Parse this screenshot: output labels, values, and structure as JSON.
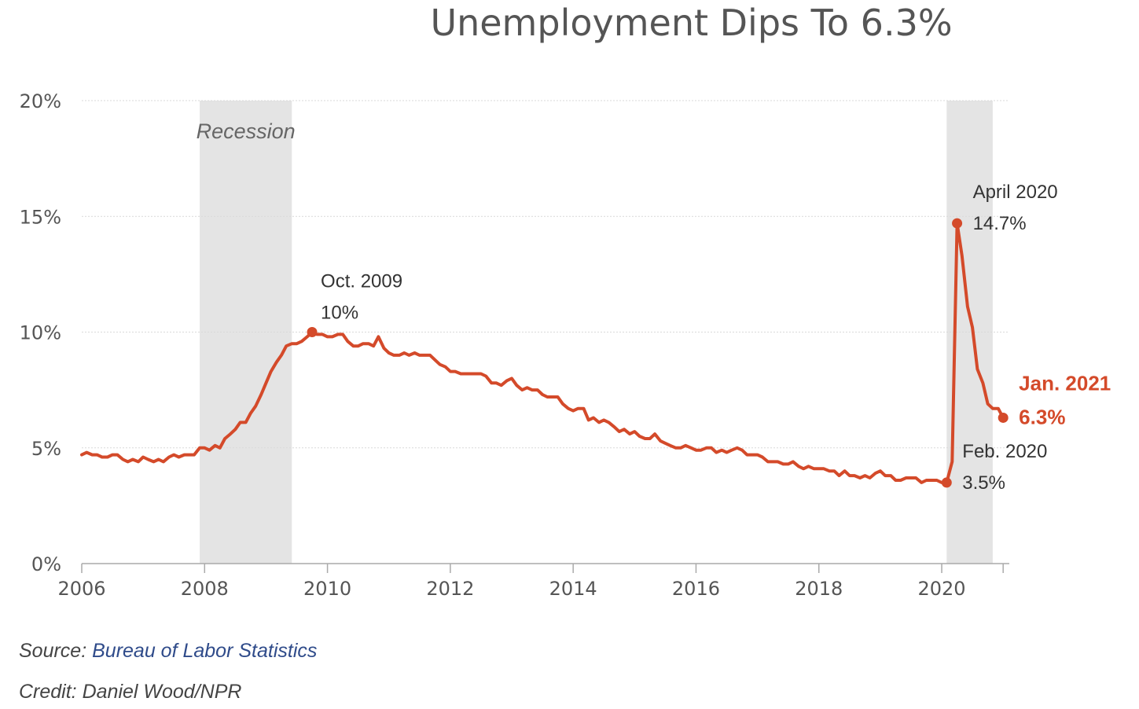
{
  "title": "Unemployment Dips To 6.3%",
  "footer": {
    "source_prefix": "Source: ",
    "source_link": "Bureau of Labor Statistics",
    "credit": "Credit: Daniel Wood/NPR"
  },
  "colors": {
    "line": "#d44a2a",
    "recession_band": "#e4e4e4",
    "grid": "#d9d9d9",
    "axis": "#aaaaaa",
    "text": "#555555"
  },
  "chart_data": {
    "type": "line",
    "title": "Unemployment Dips To 6.3%",
    "xlabel": "",
    "ylabel": "",
    "grid": true,
    "xlim": [
      2006.0,
      2021.1
    ],
    "ylim": [
      0,
      20
    ],
    "x_ticks": [
      2006,
      2008,
      2010,
      2012,
      2014,
      2016,
      2018,
      2020
    ],
    "x_tick_labels": [
      "2006",
      "2008",
      "2010",
      "2012",
      "2014",
      "2016",
      "2018",
      "2020"
    ],
    "y_ticks": [
      0,
      5,
      10,
      15,
      20
    ],
    "y_tick_labels": [
      "0%",
      "5%",
      "10%",
      "15%",
      "20%"
    ],
    "recessions": [
      {
        "start": 2007.92,
        "end": 2009.42,
        "label": "Recession"
      },
      {
        "start": 2020.08,
        "end": 2020.83,
        "label": ""
      }
    ],
    "series": [
      {
        "points": [
          [
            2006.0,
            4.7
          ],
          [
            2006.08,
            4.8
          ],
          [
            2006.17,
            4.7
          ],
          [
            2006.25,
            4.7
          ],
          [
            2006.33,
            4.6
          ],
          [
            2006.42,
            4.6
          ],
          [
            2006.5,
            4.7
          ],
          [
            2006.58,
            4.7
          ],
          [
            2006.67,
            4.5
          ],
          [
            2006.75,
            4.4
          ],
          [
            2006.83,
            4.5
          ],
          [
            2006.92,
            4.4
          ],
          [
            2007.0,
            4.6
          ],
          [
            2007.08,
            4.5
          ],
          [
            2007.17,
            4.4
          ],
          [
            2007.25,
            4.5
          ],
          [
            2007.33,
            4.4
          ],
          [
            2007.42,
            4.6
          ],
          [
            2007.5,
            4.7
          ],
          [
            2007.58,
            4.6
          ],
          [
            2007.67,
            4.7
          ],
          [
            2007.75,
            4.7
          ],
          [
            2007.83,
            4.7
          ],
          [
            2007.92,
            5.0
          ],
          [
            2008.0,
            5.0
          ],
          [
            2008.08,
            4.9
          ],
          [
            2008.17,
            5.1
          ],
          [
            2008.25,
            5.0
          ],
          [
            2008.33,
            5.4
          ],
          [
            2008.42,
            5.6
          ],
          [
            2008.5,
            5.8
          ],
          [
            2008.58,
            6.1
          ],
          [
            2008.67,
            6.1
          ],
          [
            2008.75,
            6.5
          ],
          [
            2008.83,
            6.8
          ],
          [
            2008.92,
            7.3
          ],
          [
            2009.0,
            7.8
          ],
          [
            2009.08,
            8.3
          ],
          [
            2009.17,
            8.7
          ],
          [
            2009.25,
            9.0
          ],
          [
            2009.33,
            9.4
          ],
          [
            2009.42,
            9.5
          ],
          [
            2009.5,
            9.5
          ],
          [
            2009.58,
            9.6
          ],
          [
            2009.67,
            9.8
          ],
          [
            2009.75,
            10.0
          ],
          [
            2009.83,
            9.9
          ],
          [
            2009.92,
            9.9
          ],
          [
            2010.0,
            9.8
          ],
          [
            2010.08,
            9.8
          ],
          [
            2010.17,
            9.9
          ],
          [
            2010.25,
            9.9
          ],
          [
            2010.33,
            9.6
          ],
          [
            2010.42,
            9.4
          ],
          [
            2010.5,
            9.4
          ],
          [
            2010.58,
            9.5
          ],
          [
            2010.67,
            9.5
          ],
          [
            2010.75,
            9.4
          ],
          [
            2010.83,
            9.8
          ],
          [
            2010.92,
            9.3
          ],
          [
            2011.0,
            9.1
          ],
          [
            2011.08,
            9.0
          ],
          [
            2011.17,
            9.0
          ],
          [
            2011.25,
            9.1
          ],
          [
            2011.33,
            9.0
          ],
          [
            2011.42,
            9.1
          ],
          [
            2011.5,
            9.0
          ],
          [
            2011.58,
            9.0
          ],
          [
            2011.67,
            9.0
          ],
          [
            2011.75,
            8.8
          ],
          [
            2011.83,
            8.6
          ],
          [
            2011.92,
            8.5
          ],
          [
            2012.0,
            8.3
          ],
          [
            2012.08,
            8.3
          ],
          [
            2012.17,
            8.2
          ],
          [
            2012.25,
            8.2
          ],
          [
            2012.33,
            8.2
          ],
          [
            2012.42,
            8.2
          ],
          [
            2012.5,
            8.2
          ],
          [
            2012.58,
            8.1
          ],
          [
            2012.67,
            7.8
          ],
          [
            2012.75,
            7.8
          ],
          [
            2012.83,
            7.7
          ],
          [
            2012.92,
            7.9
          ],
          [
            2013.0,
            8.0
          ],
          [
            2013.08,
            7.7
          ],
          [
            2013.17,
            7.5
          ],
          [
            2013.25,
            7.6
          ],
          [
            2013.33,
            7.5
          ],
          [
            2013.42,
            7.5
          ],
          [
            2013.5,
            7.3
          ],
          [
            2013.58,
            7.2
          ],
          [
            2013.67,
            7.2
          ],
          [
            2013.75,
            7.2
          ],
          [
            2013.83,
            6.9
          ],
          [
            2013.92,
            6.7
          ],
          [
            2014.0,
            6.6
          ],
          [
            2014.08,
            6.7
          ],
          [
            2014.17,
            6.7
          ],
          [
            2014.25,
            6.2
          ],
          [
            2014.33,
            6.3
          ],
          [
            2014.42,
            6.1
          ],
          [
            2014.5,
            6.2
          ],
          [
            2014.58,
            6.1
          ],
          [
            2014.67,
            5.9
          ],
          [
            2014.75,
            5.7
          ],
          [
            2014.83,
            5.8
          ],
          [
            2014.92,
            5.6
          ],
          [
            2015.0,
            5.7
          ],
          [
            2015.08,
            5.5
          ],
          [
            2015.17,
            5.4
          ],
          [
            2015.25,
            5.4
          ],
          [
            2015.33,
            5.6
          ],
          [
            2015.42,
            5.3
          ],
          [
            2015.5,
            5.2
          ],
          [
            2015.58,
            5.1
          ],
          [
            2015.67,
            5.0
          ],
          [
            2015.75,
            5.0
          ],
          [
            2015.83,
            5.1
          ],
          [
            2015.92,
            5.0
          ],
          [
            2016.0,
            4.9
          ],
          [
            2016.08,
            4.9
          ],
          [
            2016.17,
            5.0
          ],
          [
            2016.25,
            5.0
          ],
          [
            2016.33,
            4.8
          ],
          [
            2016.42,
            4.9
          ],
          [
            2016.5,
            4.8
          ],
          [
            2016.58,
            4.9
          ],
          [
            2016.67,
            5.0
          ],
          [
            2016.75,
            4.9
          ],
          [
            2016.83,
            4.7
          ],
          [
            2016.92,
            4.7
          ],
          [
            2017.0,
            4.7
          ],
          [
            2017.08,
            4.6
          ],
          [
            2017.17,
            4.4
          ],
          [
            2017.25,
            4.4
          ],
          [
            2017.33,
            4.4
          ],
          [
            2017.42,
            4.3
          ],
          [
            2017.5,
            4.3
          ],
          [
            2017.58,
            4.4
          ],
          [
            2017.67,
            4.2
          ],
          [
            2017.75,
            4.1
          ],
          [
            2017.83,
            4.2
          ],
          [
            2017.92,
            4.1
          ],
          [
            2018.0,
            4.1
          ],
          [
            2018.08,
            4.1
          ],
          [
            2018.17,
            4.0
          ],
          [
            2018.25,
            4.0
          ],
          [
            2018.33,
            3.8
          ],
          [
            2018.42,
            4.0
          ],
          [
            2018.5,
            3.8
          ],
          [
            2018.58,
            3.8
          ],
          [
            2018.67,
            3.7
          ],
          [
            2018.75,
            3.8
          ],
          [
            2018.83,
            3.7
          ],
          [
            2018.92,
            3.9
          ],
          [
            2019.0,
            4.0
          ],
          [
            2019.08,
            3.8
          ],
          [
            2019.17,
            3.8
          ],
          [
            2019.25,
            3.6
          ],
          [
            2019.33,
            3.6
          ],
          [
            2019.42,
            3.7
          ],
          [
            2019.5,
            3.7
          ],
          [
            2019.58,
            3.7
          ],
          [
            2019.67,
            3.5
          ],
          [
            2019.75,
            3.6
          ],
          [
            2019.83,
            3.6
          ],
          [
            2019.92,
            3.6
          ],
          [
            2020.0,
            3.5
          ],
          [
            2020.08,
            3.5
          ],
          [
            2020.17,
            4.4
          ],
          [
            2020.25,
            14.7
          ],
          [
            2020.33,
            13.3
          ],
          [
            2020.42,
            11.1
          ],
          [
            2020.5,
            10.2
          ],
          [
            2020.58,
            8.4
          ],
          [
            2020.67,
            7.8
          ],
          [
            2020.75,
            6.9
          ],
          [
            2020.83,
            6.7
          ],
          [
            2020.92,
            6.7
          ],
          [
            2021.0,
            6.3
          ]
        ]
      }
    ],
    "annotations": [
      {
        "x": 2009.75,
        "y": 10.0,
        "lines": [
          "Oct. 2009",
          "10%"
        ],
        "style": "normal"
      },
      {
        "x": 2020.25,
        "y": 14.7,
        "lines": [
          "April 2020",
          "14.7%"
        ],
        "style": "normal"
      },
      {
        "x": 2020.08,
        "y": 3.5,
        "lines": [
          "Feb. 2020",
          "3.5%"
        ],
        "style": "normal"
      },
      {
        "x": 2021.0,
        "y": 6.3,
        "lines": [
          "Jan. 2021",
          "6.3%"
        ],
        "style": "highlight"
      }
    ]
  }
}
